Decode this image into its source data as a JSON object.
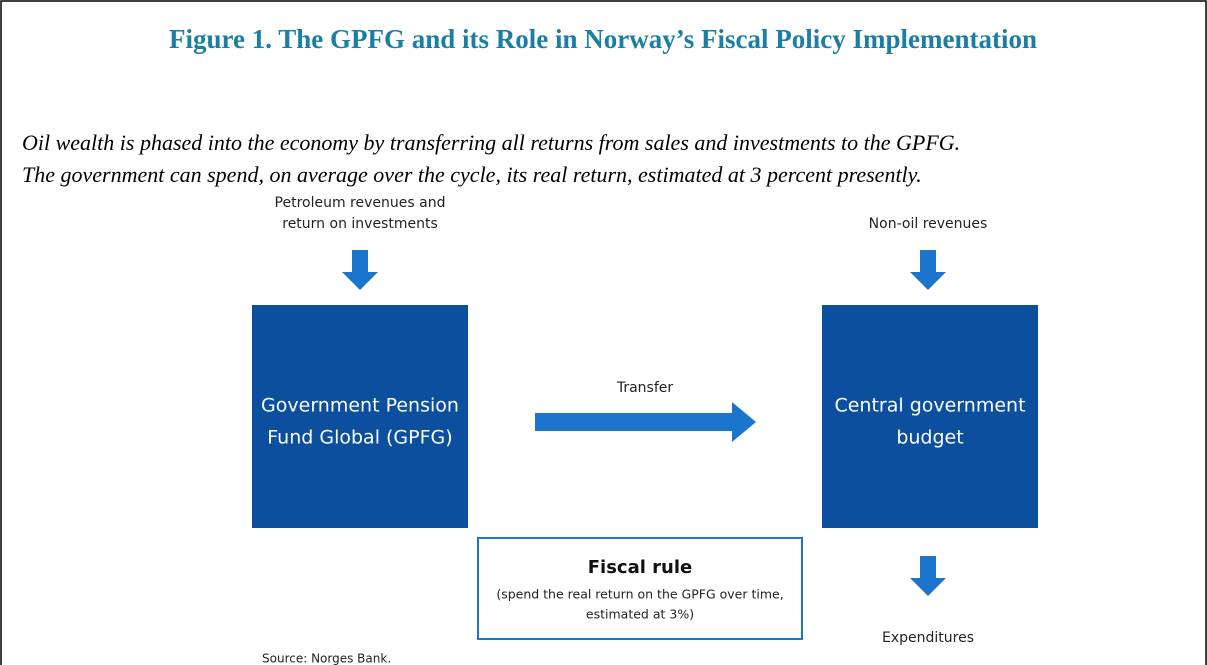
{
  "title": "Figure 1. The GPFG and its Role in Norway’s Fiscal Policy Implementation",
  "subtitle": [
    "Oil wealth is phased into the economy by transferring all returns from sales and investments to the GPFG.",
    "The government can spend, on average over the cycle, its real return, estimated at 3 percent presently."
  ],
  "inputs": {
    "left": [
      "Petroleum revenues and",
      "return on investments"
    ],
    "right": [
      "Non-oil revenues"
    ]
  },
  "nodes": [
    {
      "label": [
        "Government Pension",
        "Fund Global (GPFG)"
      ]
    },
    {
      "label": [
        "Central government",
        "budget"
      ]
    }
  ],
  "transfer": "Transfer",
  "fiscal_rule": {
    "title": "Fiscal rule",
    "text": [
      "(spend the real return on the GPFG over time,",
      "estimated at 3%)"
    ]
  },
  "output": "Expenditures",
  "source": "Source: Norges Bank."
}
